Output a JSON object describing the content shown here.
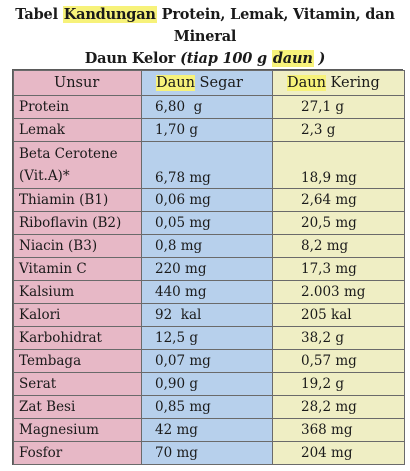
{
  "title": {
    "line1_prefix": "Tabel ",
    "line1_highlight": "Kandungan",
    "line1_suffix": " Protein, Lemak, Vitamin, dan Mineral",
    "line2_main": "Daun Kelor",
    "line2_note_open": " (tiap 100 g ",
    "line2_note_highlight": "daun",
    "line2_note_close": " )"
  },
  "headers": {
    "col1": "Unsur",
    "col2_highlight": "Daun",
    "col2_rest": " Segar",
    "col3_highlight": "Daun",
    "col3_rest": " Kering"
  },
  "rows": [
    {
      "unsur": "Protein",
      "segar": "6,80  g",
      "kering": "27,1 g"
    },
    {
      "unsur": "Lemak",
      "segar": "1,70 g",
      "kering": "2,3 g"
    },
    {
      "unsur_top": "Beta Cerotene",
      "unsur": "(Vit.A)*",
      "segar": "6,78 mg",
      "kering": "18,9 mg"
    },
    {
      "unsur": "Thiamin (B1)",
      "segar": "0,06 mg",
      "kering": "2,64 mg"
    },
    {
      "unsur": "Riboflavin (B2)",
      "segar": "0,05 mg",
      "kering": "20,5 mg"
    },
    {
      "unsur": "Niacin (B3)",
      "segar": "0,8 mg",
      "kering": "8,2 mg"
    },
    {
      "unsur": "Vitamin C",
      "segar": "220 mg",
      "kering": "17,3 mg"
    },
    {
      "unsur": "Kalsium",
      "segar": "440 mg",
      "kering": "2.003 mg"
    },
    {
      "unsur": "Kalori",
      "segar": "92  kal",
      "kering": "205 kal"
    },
    {
      "unsur": "Karbohidrat",
      "segar": "12,5 g",
      "kering": "38,2 g"
    },
    {
      "unsur": "Tembaga",
      "segar": "0,07 mg",
      "kering": "0,57 mg"
    },
    {
      "unsur": "Serat",
      "segar": "0,90 g",
      "kering": "19,2 g"
    },
    {
      "unsur": "Zat Besi",
      "segar": "0,85 mg",
      "kering": "28,2 mg"
    },
    {
      "unsur": "Magnesium",
      "segar": "42 mg",
      "kering": "368 mg"
    },
    {
      "unsur": "Fosfor",
      "segar": "70 mg",
      "kering": "204 mg"
    }
  ],
  "colors": {
    "col1_bg": "#e7b8c6",
    "col2_bg": "#b7d0ec",
    "col3_bg": "#efeec4",
    "highlight": "#f7f27a"
  }
}
